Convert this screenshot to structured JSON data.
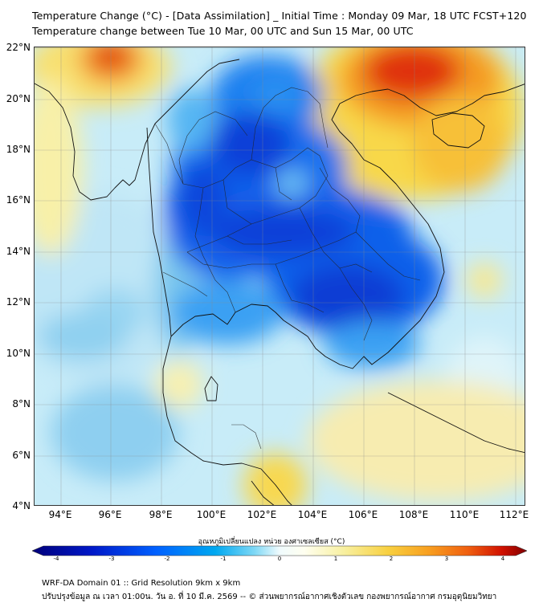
{
  "title_line1": "Temperature Change (°C) - [Data Assimilation] _ Initial Time : Monday 09 Mar, 18 UTC FCST+120",
  "title_line2": "Temperature change between Tue 10 Mar, 00 UTC and Sun 15 Mar, 00 UTC",
  "map": {
    "lat_ticks": [
      "22°N",
      "20°N",
      "18°N",
      "16°N",
      "14°N",
      "12°N",
      "10°N",
      "8°N",
      "6°N",
      "4°N"
    ],
    "lon_ticks": [
      "94°E",
      "96°E",
      "98°E",
      "100°E",
      "102°E",
      "104°E",
      "106°E",
      "108°E",
      "110°E",
      "112°E"
    ]
  },
  "colorbar": {
    "label": "อุณหภูมิเปลี่ยนแปลง หน่วย องศาเซลเซียส (°C)",
    "ticks": [
      "-4",
      "-3",
      "-2",
      "-1",
      "0",
      "1",
      "2",
      "3",
      "4"
    ],
    "colors": [
      "#00007a",
      "#0018c8",
      "#0060ff",
      "#00a8f0",
      "#7fd8f5",
      "#e8f8fa",
      "#fffff0",
      "#f8f0a0",
      "#f8d040",
      "#f8a020",
      "#f06010",
      "#d01000",
      "#800000"
    ]
  },
  "footer_line1": "WRF-DA Domain 01 :: Grid Resolution 9km x 9km",
  "footer_line2": "ปรับปรุงข้อมูล ณ เวลา 01:00น. วัน อ. ที่ 10 มี.ค. 2569 -- © ส่วนพยากรณ์อากาศเชิงตัวเลข กองพยากรณ์อากาศ กรมอุตุนิยมวิทยา"
}
